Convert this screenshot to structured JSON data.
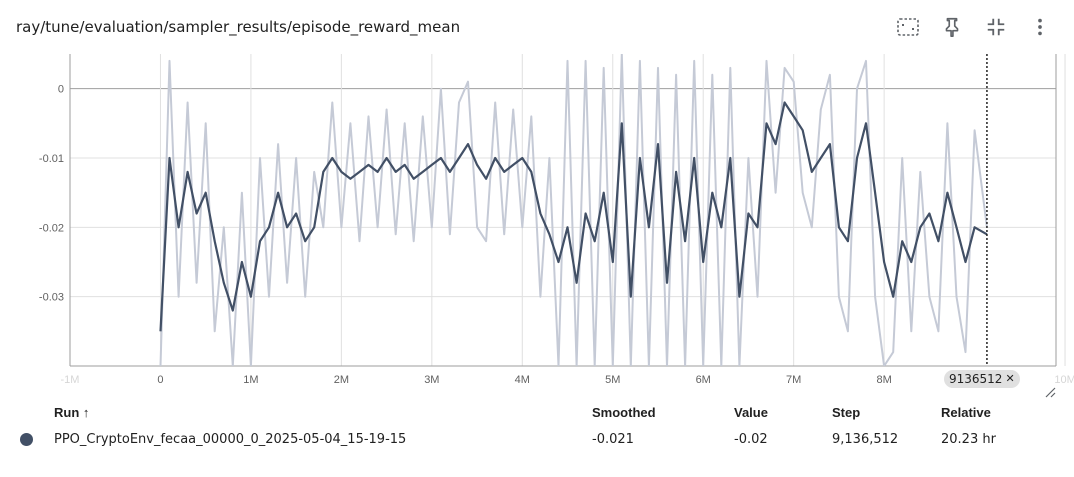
{
  "header": {
    "title": "ray/tune/evaluation/sampler_results/episode_reward_mean"
  },
  "toolbar": {
    "icons": [
      "fit-domain-icon",
      "pin-icon",
      "collapse-icon",
      "more-vert-icon"
    ]
  },
  "chart_data": {
    "type": "line",
    "title": "ray/tune/evaluation/sampler_results/episode_reward_mean",
    "xlabel": "",
    "ylabel": "",
    "xlim": [
      -1000000,
      9900000
    ],
    "ylim": [
      -0.04,
      0.005
    ],
    "x_ticks": [
      {
        "value": -1000000,
        "label": "-1M"
      },
      {
        "value": 0,
        "label": "0"
      },
      {
        "value": 1000000,
        "label": "1M"
      },
      {
        "value": 2000000,
        "label": "2M"
      },
      {
        "value": 3000000,
        "label": "3M"
      },
      {
        "value": 4000000,
        "label": "4M"
      },
      {
        "value": 5000000,
        "label": "5M"
      },
      {
        "value": 6000000,
        "label": "6M"
      },
      {
        "value": 7000000,
        "label": "7M"
      },
      {
        "value": 8000000,
        "label": "8M"
      },
      {
        "value": 10000000,
        "label": "10M"
      }
    ],
    "y_ticks": [
      {
        "value": 0,
        "label": "0"
      },
      {
        "value": -0.01,
        "label": "-0.01"
      },
      {
        "value": -0.02,
        "label": "-0.02"
      },
      {
        "value": -0.03,
        "label": "-0.03"
      },
      {
        "value": -0.04,
        "label": "-0.04"
      }
    ],
    "grid": true,
    "hover_step": 9136512,
    "hover_step_label": "9136512",
    "series": [
      {
        "role": "smoothed",
        "color": "#425066",
        "x": [
          0,
          100000,
          200000,
          300000,
          400000,
          500000,
          600000,
          700000,
          800000,
          900000,
          1000000,
          1100000,
          1200000,
          1300000,
          1400000,
          1500000,
          1600000,
          1700000,
          1800000,
          1900000,
          2000000,
          2100000,
          2200000,
          2300000,
          2400000,
          2500000,
          2600000,
          2700000,
          2800000,
          2900000,
          3000000,
          3100000,
          3200000,
          3300000,
          3400000,
          3500000,
          3600000,
          3700000,
          3800000,
          3900000,
          4000000,
          4100000,
          4200000,
          4300000,
          4400000,
          4500000,
          4600000,
          4700000,
          4800000,
          4900000,
          5000000,
          5100000,
          5200000,
          5300000,
          5400000,
          5500000,
          5600000,
          5700000,
          5800000,
          5900000,
          6000000,
          6100000,
          6200000,
          6300000,
          6400000,
          6500000,
          6600000,
          6700000,
          6800000,
          6900000,
          7000000,
          7100000,
          7200000,
          7300000,
          7400000,
          7500000,
          7600000,
          7700000,
          7800000,
          7900000,
          8000000,
          8100000,
          8200000,
          8300000,
          8400000,
          8500000,
          8600000,
          8700000,
          8800000,
          8900000,
          9000000,
          9136512
        ],
        "values": [
          -0.035,
          -0.01,
          -0.02,
          -0.012,
          -0.018,
          -0.015,
          -0.022,
          -0.028,
          -0.032,
          -0.025,
          -0.03,
          -0.022,
          -0.02,
          -0.015,
          -0.02,
          -0.018,
          -0.022,
          -0.02,
          -0.012,
          -0.01,
          -0.012,
          -0.013,
          -0.012,
          -0.011,
          -0.012,
          -0.01,
          -0.012,
          -0.011,
          -0.013,
          -0.012,
          -0.011,
          -0.01,
          -0.012,
          -0.01,
          -0.008,
          -0.011,
          -0.013,
          -0.01,
          -0.012,
          -0.011,
          -0.01,
          -0.012,
          -0.018,
          -0.021,
          -0.025,
          -0.02,
          -0.028,
          -0.018,
          -0.022,
          -0.015,
          -0.025,
          -0.005,
          -0.03,
          -0.01,
          -0.02,
          -0.008,
          -0.028,
          -0.012,
          -0.022,
          -0.01,
          -0.025,
          -0.015,
          -0.02,
          -0.01,
          -0.03,
          -0.018,
          -0.02,
          -0.005,
          -0.008,
          -0.002,
          -0.004,
          -0.006,
          -0.012,
          -0.01,
          -0.008,
          -0.02,
          -0.022,
          -0.01,
          -0.005,
          -0.015,
          -0.025,
          -0.03,
          -0.022,
          -0.025,
          -0.02,
          -0.018,
          -0.022,
          -0.015,
          -0.02,
          -0.025,
          -0.02,
          -0.021
        ]
      },
      {
        "role": "raw",
        "color": "#c5cad6",
        "x": [
          0,
          100000,
          200000,
          300000,
          400000,
          500000,
          600000,
          700000,
          800000,
          900000,
          1000000,
          1100000,
          1200000,
          1300000,
          1400000,
          1500000,
          1600000,
          1700000,
          1800000,
          1900000,
          2000000,
          2100000,
          2200000,
          2300000,
          2400000,
          2500000,
          2600000,
          2700000,
          2800000,
          2900000,
          3000000,
          3100000,
          3200000,
          3300000,
          3400000,
          3500000,
          3600000,
          3700000,
          3800000,
          3900000,
          4000000,
          4100000,
          4200000,
          4300000,
          4400000,
          4500000,
          4600000,
          4700000,
          4800000,
          4900000,
          5000000,
          5100000,
          5200000,
          5300000,
          5400000,
          5500000,
          5600000,
          5700000,
          5800000,
          5900000,
          6000000,
          6100000,
          6200000,
          6300000,
          6400000,
          6500000,
          6600000,
          6700000,
          6800000,
          6900000,
          7000000,
          7100000,
          7200000,
          7300000,
          7400000,
          7500000,
          7600000,
          7700000,
          7800000,
          7900000,
          8000000,
          8100000,
          8200000,
          8300000,
          8400000,
          8500000,
          8600000,
          8700000,
          8800000,
          8900000,
          9000000,
          9136512
        ],
        "values": [
          -0.04,
          0.004,
          -0.03,
          -0.002,
          -0.028,
          -0.005,
          -0.035,
          -0.02,
          -0.04,
          -0.015,
          -0.04,
          -0.01,
          -0.03,
          -0.008,
          -0.028,
          -0.01,
          -0.03,
          -0.012,
          -0.02,
          -0.002,
          -0.02,
          -0.005,
          -0.022,
          -0.004,
          -0.02,
          -0.003,
          -0.021,
          -0.005,
          -0.022,
          -0.004,
          -0.02,
          0.0,
          -0.021,
          -0.002,
          0.001,
          -0.02,
          -0.022,
          -0.002,
          -0.021,
          -0.003,
          -0.02,
          -0.004,
          -0.03,
          -0.01,
          -0.04,
          0.004,
          -0.04,
          0.004,
          -0.04,
          0.003,
          -0.04,
          0.005,
          -0.04,
          0.004,
          -0.04,
          0.003,
          -0.04,
          0.002,
          -0.04,
          0.004,
          -0.04,
          0.002,
          -0.04,
          0.003,
          -0.04,
          -0.01,
          -0.03,
          0.004,
          -0.015,
          0.003,
          0.001,
          -0.015,
          -0.02,
          -0.003,
          0.002,
          -0.03,
          -0.035,
          0.0,
          0.004,
          -0.03,
          -0.04,
          -0.038,
          -0.01,
          -0.035,
          -0.012,
          -0.03,
          -0.035,
          -0.005,
          -0.03,
          -0.038,
          -0.006,
          -0.02
        ]
      }
    ]
  },
  "table": {
    "headers": {
      "run": "Run ↑",
      "smoothed": "Smoothed",
      "value": "Value",
      "step": "Step",
      "relative": "Relative"
    },
    "rows": [
      {
        "color": "#425066",
        "run": "PPO_CryptoEnv_fecaa_00000_0_2025-05-04_15-19-15",
        "smoothed": "-0.021",
        "value": "-0.02",
        "step": "9,136,512",
        "relative": "20.23 hr"
      }
    ]
  }
}
